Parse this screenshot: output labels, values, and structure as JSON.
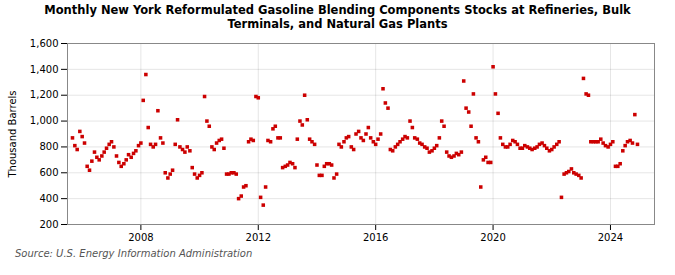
{
  "chart_data": {
    "type": "scatter",
    "title": "Monthly New York Reformulated Gasoline Blending Components Stocks at Refineries, Bulk\nTerminals, and Natural Gas Plants",
    "ylabel": "Thousand Barrels",
    "source": "Source: U.S. Energy Information Administration",
    "color": "#CC0000",
    "marker": "square",
    "grid": true,
    "xlim": [
      2005.5,
      2025.5
    ],
    "xticks": [
      2008,
      2012,
      2016,
      2020,
      2024
    ],
    "ylim": [
      200,
      1600
    ],
    "yticks": [
      200,
      400,
      600,
      800,
      {
        "value": 1000,
        "label": "1,000"
      },
      {
        "value": 1200,
        "label": "1,200"
      },
      {
        "value": 1400,
        "label": "1,400"
      },
      {
        "value": 1600,
        "label": "1,600"
      }
    ],
    "x": [
      2005.67,
      2005.75,
      2005.83,
      2005.92,
      2006.0,
      2006.08,
      2006.17,
      2006.25,
      2006.33,
      2006.42,
      2006.5,
      2006.58,
      2006.67,
      2006.75,
      2006.83,
      2006.92,
      2007.0,
      2007.08,
      2007.17,
      2007.25,
      2007.33,
      2007.42,
      2007.5,
      2007.58,
      2007.67,
      2007.75,
      2007.83,
      2007.92,
      2008.0,
      2008.08,
      2008.17,
      2008.25,
      2008.33,
      2008.42,
      2008.5,
      2008.58,
      2008.67,
      2008.75,
      2008.83,
      2008.92,
      2009.0,
      2009.08,
      2009.17,
      2009.25,
      2009.33,
      2009.42,
      2009.5,
      2009.58,
      2009.67,
      2009.75,
      2009.83,
      2009.92,
      2010.0,
      2010.08,
      2010.17,
      2010.25,
      2010.33,
      2010.42,
      2010.5,
      2010.58,
      2010.67,
      2010.75,
      2010.83,
      2010.92,
      2011.0,
      2011.08,
      2011.17,
      2011.25,
      2011.33,
      2011.42,
      2011.5,
      2011.58,
      2011.67,
      2011.75,
      2011.83,
      2011.92,
      2012.0,
      2012.08,
      2012.17,
      2012.25,
      2012.33,
      2012.42,
      2012.5,
      2012.58,
      2012.67,
      2012.75,
      2012.83,
      2012.92,
      2013.0,
      2013.08,
      2013.17,
      2013.25,
      2013.33,
      2013.42,
      2013.5,
      2013.58,
      2013.67,
      2013.75,
      2013.83,
      2013.92,
      2014.0,
      2014.08,
      2014.17,
      2014.25,
      2014.33,
      2014.42,
      2014.5,
      2014.58,
      2014.67,
      2014.75,
      2014.83,
      2014.92,
      2015.0,
      2015.08,
      2015.17,
      2015.25,
      2015.33,
      2015.42,
      2015.5,
      2015.58,
      2015.67,
      2015.75,
      2015.83,
      2015.92,
      2016.0,
      2016.08,
      2016.17,
      2016.25,
      2016.33,
      2016.42,
      2016.5,
      2016.58,
      2016.67,
      2016.75,
      2016.83,
      2016.92,
      2017.0,
      2017.08,
      2017.17,
      2017.25,
      2017.33,
      2017.42,
      2017.5,
      2017.58,
      2017.67,
      2017.75,
      2017.83,
      2017.92,
      2018.0,
      2018.08,
      2018.17,
      2018.25,
      2018.33,
      2018.42,
      2018.5,
      2018.58,
      2018.67,
      2018.75,
      2018.83,
      2018.92,
      2019.0,
      2019.08,
      2019.17,
      2019.25,
      2019.33,
      2019.42,
      2019.5,
      2019.58,
      2019.67,
      2019.75,
      2019.83,
      2019.92,
      2020.0,
      2020.08,
      2020.17,
      2020.25,
      2020.33,
      2020.42,
      2020.5,
      2020.58,
      2020.67,
      2020.75,
      2020.83,
      2020.92,
      2021.0,
      2021.08,
      2021.17,
      2021.25,
      2021.33,
      2021.42,
      2021.5,
      2021.58,
      2021.67,
      2021.75,
      2021.83,
      2021.92,
      2022.0,
      2022.08,
      2022.17,
      2022.25,
      2022.33,
      2022.42,
      2022.5,
      2022.58,
      2022.67,
      2022.75,
      2022.83,
      2022.92,
      2023.0,
      2023.08,
      2023.17,
      2023.25,
      2023.33,
      2023.42,
      2023.5,
      2023.58,
      2023.67,
      2023.75,
      2023.83,
      2023.92,
      2024.0,
      2024.08,
      2024.17,
      2024.25,
      2024.33,
      2024.42,
      2024.5,
      2024.58,
      2024.67,
      2024.75,
      2024.83,
      2024.92
    ],
    "values": [
      870,
      810,
      780,
      920,
      880,
      830,
      650,
      620,
      690,
      760,
      720,
      700,
      730,
      760,
      790,
      820,
      840,
      800,
      730,
      680,
      650,
      670,
      700,
      740,
      720,
      750,
      770,
      810,
      830,
      1160,
      1360,
      950,
      820,
      800,
      820,
      1080,
      870,
      830,
      600,
      560,
      590,
      620,
      820,
      1010,
      800,
      780,
      760,
      800,
      770,
      640,
      590,
      560,
      580,
      600,
      1190,
      1000,
      960,
      800,
      780,
      830,
      850,
      860,
      790,
      590,
      590,
      600,
      600,
      590,
      400,
      420,
      490,
      500,
      840,
      860,
      850,
      1190,
      1180,
      410,
      350,
      490,
      850,
      840,
      940,
      960,
      870,
      870,
      640,
      650,
      660,
      680,
      670,
      640,
      860,
      1000,
      970,
      1200,
      1010,
      860,
      840,
      820,
      660,
      580,
      580,
      650,
      670,
      670,
      660,
      560,
      590,
      820,
      800,
      840,
      870,
      880,
      800,
      780,
      900,
      920,
      870,
      850,
      900,
      950,
      870,
      840,
      820,
      860,
      900,
      1250,
      1140,
      1100,
      780,
      770,
      800,
      820,
      840,
      860,
      880,
      870,
      1000,
      950,
      870,
      860,
      830,
      820,
      800,
      790,
      760,
      770,
      790,
      810,
      870,
      1000,
      960,
      760,
      730,
      720,
      730,
      750,
      740,
      760,
      1310,
      1100,
      1070,
      960,
      1210,
      870,
      840,
      490,
      700,
      720,
      680,
      680,
      1420,
      1210,
      1060,
      870,
      820,
      800,
      800,
      820,
      850,
      840,
      820,
      790,
      790,
      810,
      800,
      790,
      780,
      790,
      800,
      820,
      830,
      810,
      790,
      770,
      780,
      800,
      820,
      840,
      410,
      590,
      600,
      610,
      630,
      600,
      590,
      580,
      560,
      1330,
      1210,
      1200,
      840,
      840,
      840,
      840,
      860,
      830,
      810,
      800,
      820,
      840,
      650,
      650,
      670,
      770,
      810,
      840,
      850,
      830,
      1050,
      820
    ]
  }
}
